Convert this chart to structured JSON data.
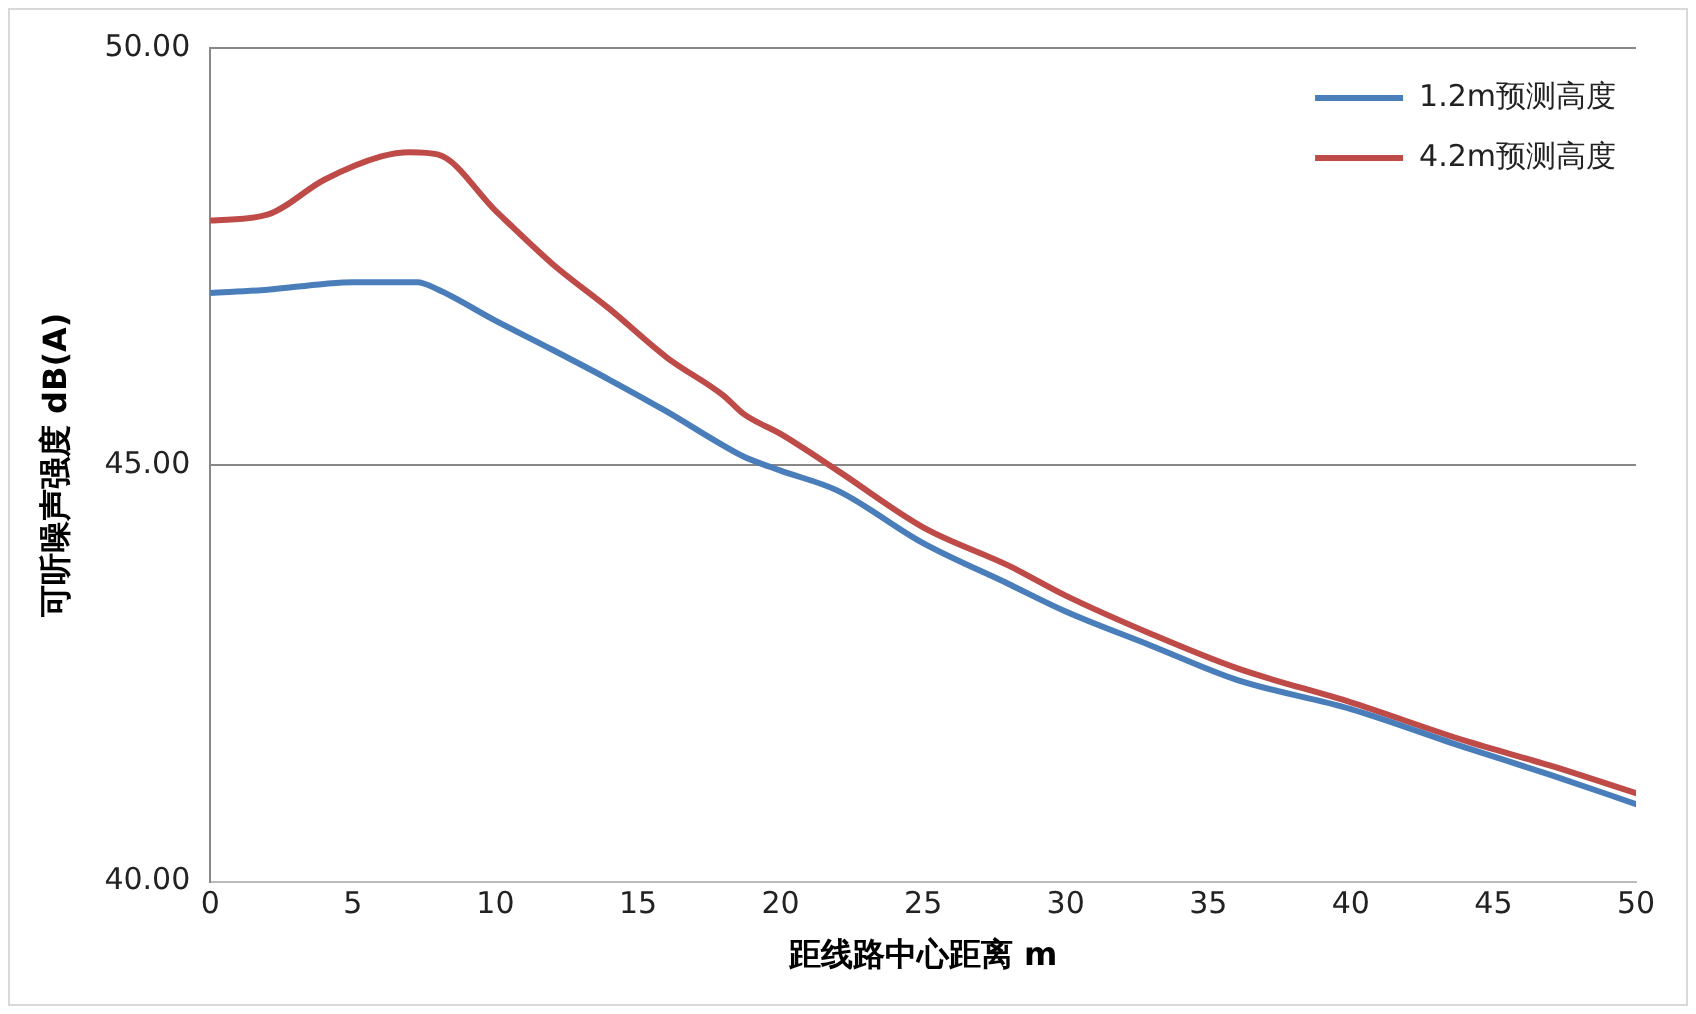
{
  "chart_data": {
    "type": "line",
    "xlabel": "距线路中心距离 m",
    "ylabel": "可听噪声强度 dB(A)",
    "series": [
      {
        "name": "1.2m预测高度",
        "color": "#4a7ebb",
        "x": [
          0,
          2,
          4,
          5,
          7.25,
          8,
          10,
          12,
          14,
          16,
          18,
          18.7,
          20,
          22,
          25,
          28,
          30,
          33,
          36,
          40,
          44,
          47,
          50
        ],
        "values": [
          47.06,
          47.1,
          47.17,
          47.19,
          47.19,
          47.1,
          46.73,
          46.38,
          46.02,
          45.64,
          45.23,
          45.1,
          44.93,
          44.69,
          44.06,
          43.57,
          43.24,
          42.83,
          42.42,
          42.07,
          41.61,
          41.28,
          40.93
        ]
      },
      {
        "name": "4.2m预测高度",
        "color": "#be4b48",
        "x": [
          0,
          2,
          4,
          6,
          7,
          8,
          10,
          12,
          14,
          16,
          18,
          18.7,
          20,
          22,
          25,
          28,
          30,
          33,
          36,
          40,
          44,
          47,
          50
        ],
        "values": [
          47.93,
          48.0,
          48.42,
          48.7,
          48.75,
          48.72,
          48.05,
          47.41,
          46.87,
          46.29,
          45.83,
          45.61,
          45.37,
          44.93,
          44.25,
          43.79,
          43.43,
          42.97,
          42.56,
          42.15,
          41.69,
          41.39,
          41.06
        ]
      }
    ],
    "xlim": [
      0,
      50
    ],
    "xticks": [
      0,
      5,
      10,
      15,
      20,
      25,
      30,
      35,
      40,
      45,
      50
    ],
    "ylim": [
      40,
      50
    ],
    "yticks": [
      {
        "value": 40,
        "label": "40.00"
      },
      {
        "value": 45,
        "label": "45.00"
      },
      {
        "value": 50,
        "label": "50.00"
      }
    ],
    "grid": "y",
    "legend": "top right",
    "marker": "none",
    "line_style": "solid"
  }
}
